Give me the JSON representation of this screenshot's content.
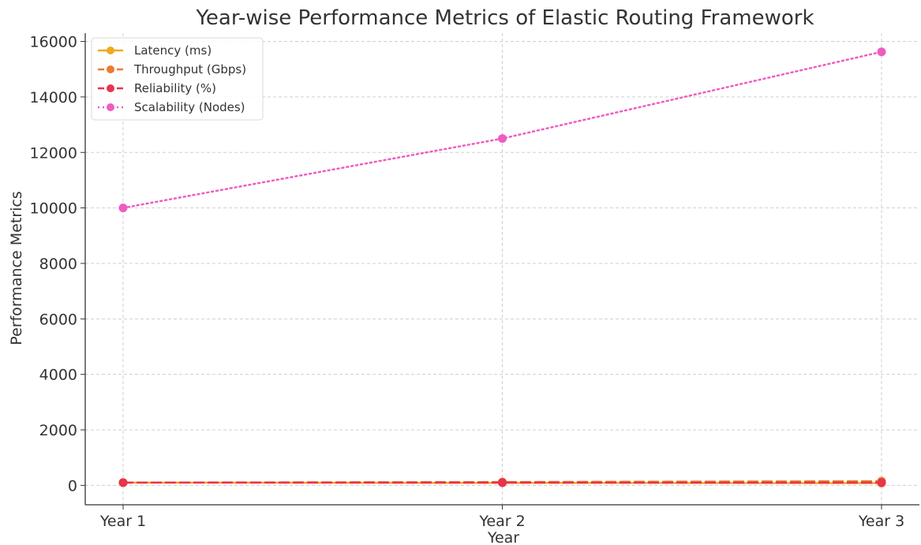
{
  "chart_data": {
    "type": "line",
    "title": "Year-wise Performance Metrics of Elastic Routing Framework",
    "xlabel": "Year",
    "ylabel": "Performance Metrics",
    "categories": [
      "Year 1",
      "Year 2",
      "Year 3"
    ],
    "ylim": [
      -700,
      16300
    ],
    "yticks": [
      0,
      2000,
      4000,
      6000,
      8000,
      10000,
      12000,
      14000,
      16000
    ],
    "grid": true,
    "legend_position": "top-left",
    "series": [
      {
        "name": "Latency (ms)",
        "values": [
          100,
          90,
          80
        ],
        "color": "#f4a81d",
        "line_style": "solid"
      },
      {
        "name": "Throughput (Gbps)",
        "values": [
          100,
          120,
          150
        ],
        "color": "#ec7a2f",
        "line_style": "dashed"
      },
      {
        "name": "Reliability (%)",
        "values": [
          99,
          99.5,
          99.9
        ],
        "color": "#e8344e",
        "line_style": "dashed"
      },
      {
        "name": "Scalability (Nodes)",
        "values": [
          10000,
          12500,
          15625
        ],
        "color": "#ee5cc2",
        "line_style": "dotted"
      }
    ]
  }
}
